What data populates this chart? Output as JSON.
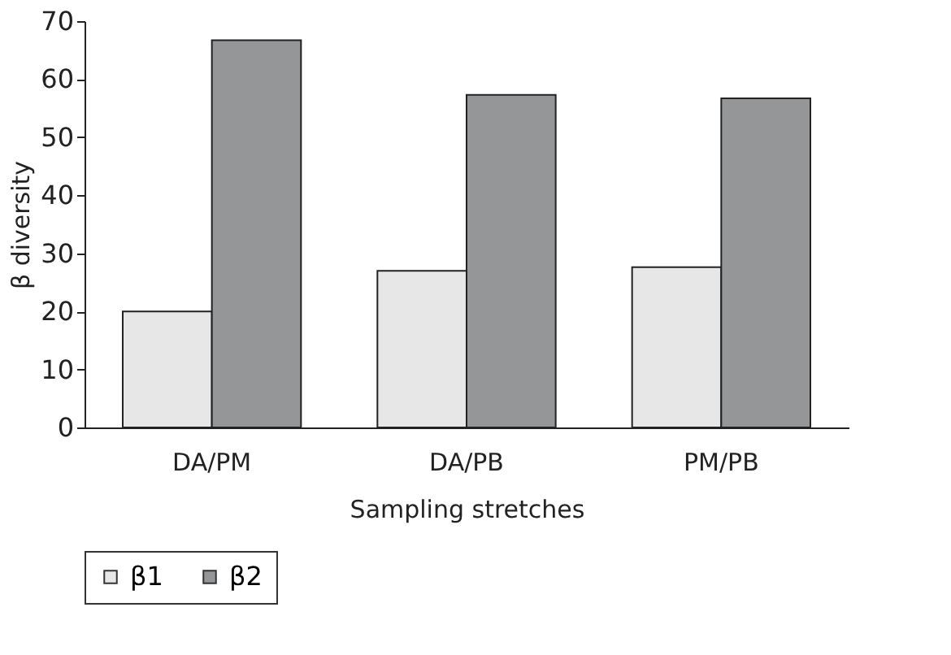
{
  "chart_data": {
    "type": "bar",
    "xlabel": "Sampling stretches",
    "ylabel": "β diversity",
    "categories": [
      "DA/PM",
      "DA/PB",
      "PM/PB"
    ],
    "series": [
      {
        "name": "β1",
        "color": "#e6e7e6",
        "values": [
          20,
          27,
          27.6
        ]
      },
      {
        "name": "β2",
        "color": "#959698",
        "values": [
          66.7,
          57.3,
          56.7
        ]
      }
    ],
    "ylim": [
      0,
      70
    ],
    "yticks": [
      0,
      10,
      20,
      30,
      40,
      50,
      60,
      70
    ],
    "grid": false,
    "legend": "bottom"
  }
}
